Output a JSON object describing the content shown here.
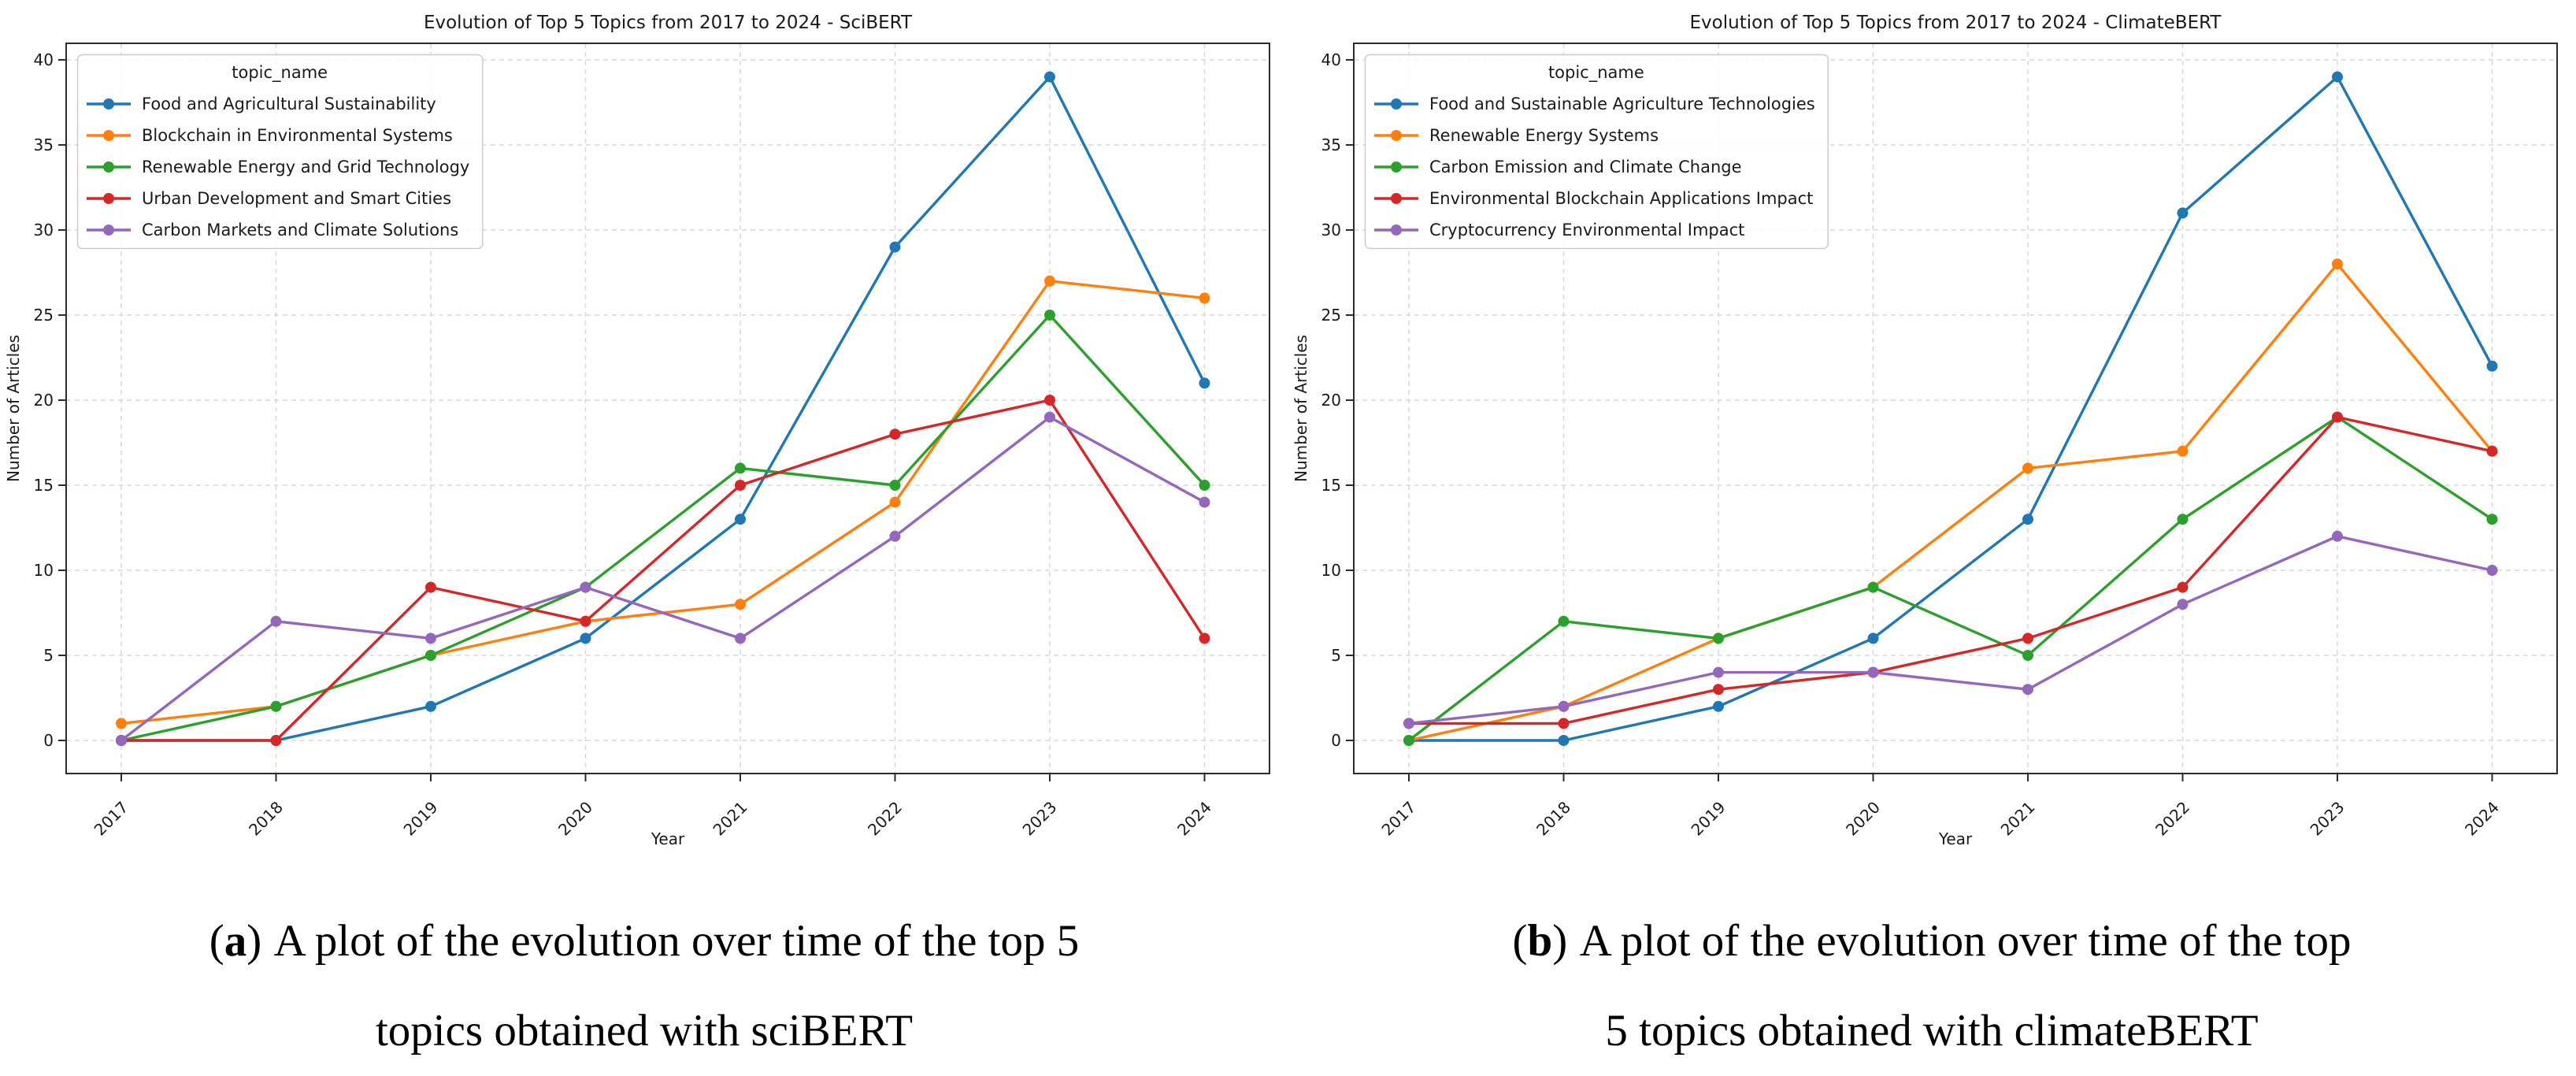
{
  "chart_data": [
    {
      "type": "line",
      "title": "Evolution of Top 5 Topics from 2017 to 2024 - SciBERT",
      "xlabel": "Year",
      "ylabel": "Number of Articles",
      "legend_title": "topic_name",
      "legend_position": "upper left",
      "grid": true,
      "x": [
        "2017",
        "2018",
        "2019",
        "2020",
        "2021",
        "2022",
        "2023",
        "2024"
      ],
      "yticks": [
        0,
        5,
        10,
        15,
        20,
        25,
        30,
        35,
        40
      ],
      "ylim": [
        0,
        40
      ],
      "series": [
        {
          "name": "Food and Agricultural Sustainability",
          "color": "#1f77b4",
          "values": [
            0,
            0,
            2,
            6,
            13,
            29,
            39,
            21
          ]
        },
        {
          "name": "Blockchain in Environmental Systems",
          "color": "#ff7f0e",
          "values": [
            1,
            2,
            5,
            7,
            8,
            14,
            27,
            26
          ]
        },
        {
          "name": "Renewable Energy and Grid Technology",
          "color": "#2ca02c",
          "values": [
            0,
            2,
            5,
            9,
            16,
            15,
            25,
            15
          ]
        },
        {
          "name": "Urban Development and Smart Cities",
          "color": "#d62728",
          "values": [
            0,
            0,
            9,
            7,
            15,
            18,
            20,
            6
          ]
        },
        {
          "name": "Carbon Markets and Climate Solutions",
          "color": "#9467bd",
          "values": [
            0,
            7,
            6,
            9,
            6,
            12,
            19,
            14
          ]
        }
      ]
    },
    {
      "type": "line",
      "title": "Evolution of Top 5 Topics from 2017 to 2024 - ClimateBERT",
      "xlabel": "Year",
      "ylabel": "Number of Articles",
      "legend_title": "topic_name",
      "legend_position": "upper left",
      "grid": true,
      "x": [
        "2017",
        "2018",
        "2019",
        "2020",
        "2021",
        "2022",
        "2023",
        "2024"
      ],
      "yticks": [
        0,
        5,
        10,
        15,
        20,
        25,
        30,
        35,
        40
      ],
      "ylim": [
        0,
        40
      ],
      "series": [
        {
          "name": "Food and Sustainable Agriculture Technologies",
          "color": "#1f77b4",
          "values": [
            0,
            0,
            2,
            6,
            13,
            31,
            39,
            22
          ]
        },
        {
          "name": "Renewable Energy Systems",
          "color": "#ff7f0e",
          "values": [
            0,
            2,
            6,
            9,
            16,
            17,
            28,
            17
          ]
        },
        {
          "name": "Carbon Emission and Climate Change",
          "color": "#2ca02c",
          "values": [
            0,
            7,
            6,
            9,
            5,
            13,
            19,
            13
          ]
        },
        {
          "name": "Environmental Blockchain Applications Impact",
          "color": "#d62728",
          "values": [
            1,
            1,
            3,
            4,
            6,
            9,
            19,
            17
          ]
        },
        {
          "name": "Cryptocurrency Environmental Impact",
          "color": "#9467bd",
          "values": [
            1,
            2,
            4,
            4,
            3,
            8,
            12,
            10
          ]
        }
      ]
    }
  ],
  "captions": [
    {
      "paren_open": "(",
      "marker": "a",
      "paren_close": ")",
      "line1": "A plot of the evolution over time of the top 5",
      "line2": "topics obtained with sciBERT"
    },
    {
      "paren_open": "(",
      "marker": "b",
      "paren_close": ")",
      "line1": "A plot of the evolution over time of the top",
      "line2": "5 topics obtained with climateBERT"
    }
  ],
  "style": {
    "background": "#ffffff",
    "grid_color": "#d8d8d8",
    "spine_color": "#2b2b2b",
    "text_color": "#1a1a1a",
    "legend_border_color": "#cccccc"
  }
}
